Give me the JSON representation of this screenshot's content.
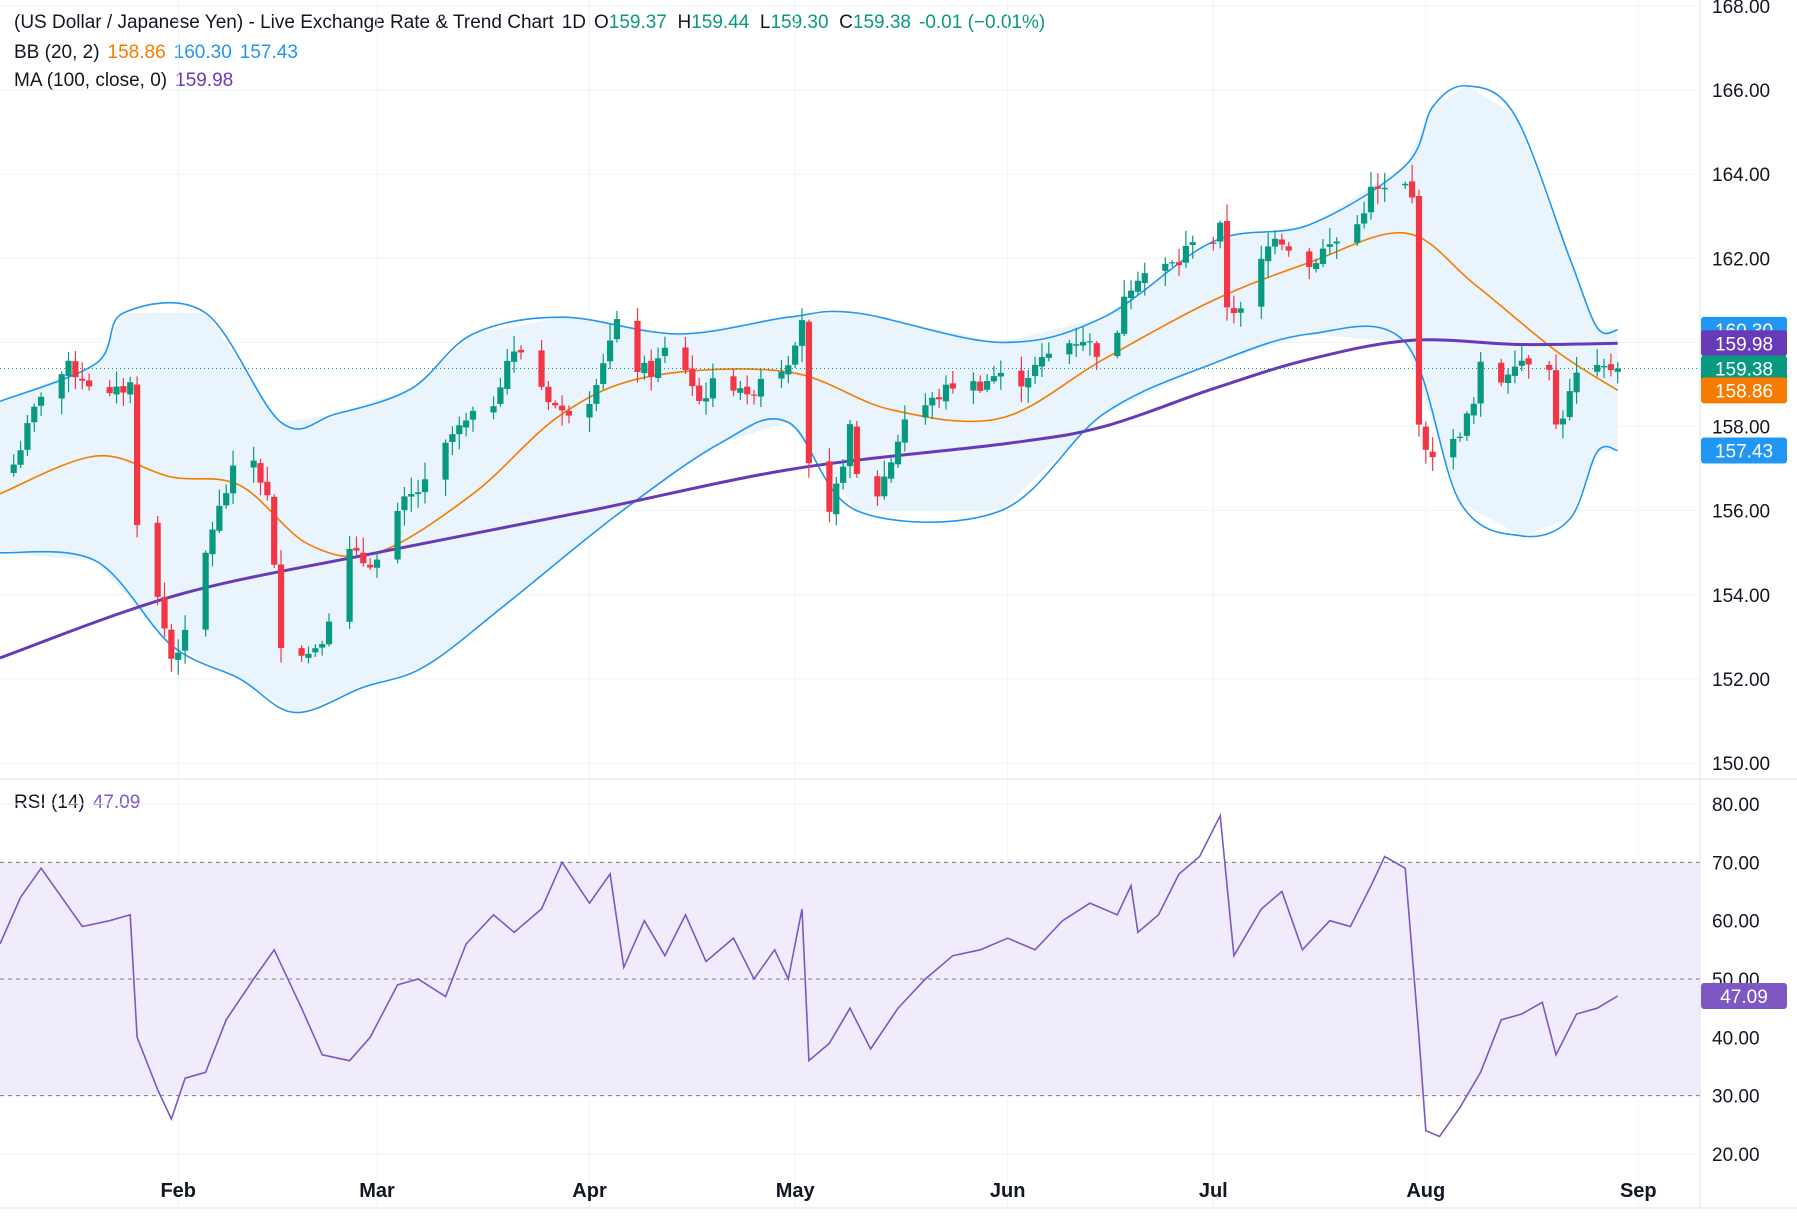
{
  "header": {
    "title": "(US Dollar / Japanese Yen) - Live Exchange Rate & Trend Chart",
    "interval": "1D",
    "ohlc": [
      {
        "k": "O",
        "v": "159.37"
      },
      {
        "k": "H",
        "v": "159.44"
      },
      {
        "k": "L",
        "v": "159.30"
      },
      {
        "k": "C",
        "v": "159.38"
      }
    ],
    "change": "-0.01 (−0.01%)",
    "bb_label": "BB (20, 2)",
    "bb_values": [
      "158.86",
      "160.30",
      "157.43"
    ],
    "ma_label": "MA (100, close, 0)",
    "ma_value": "159.98",
    "rsi_label": "RSI (14)",
    "rsi_value": "47.09"
  },
  "colors": {
    "up": "#089981",
    "down": "#f23645",
    "bb_basis": "#f57c00",
    "bb_band": "#2196f3",
    "bb_fill": "#eaf4fd",
    "ma": "#673ab7",
    "rsi": "#7e57c2",
    "rsi_fill": "#f1ecfb",
    "grid": "#f0f3fa",
    "axis_text": "#131722"
  },
  "chart_data": [
    {
      "type": "candlestick",
      "ylim": [
        150,
        168
      ],
      "y_ticks": [
        "150.00",
        "152.00",
        "154.00",
        "156.00",
        "158.00",
        "160.00",
        "162.00",
        "164.00",
        "166.00",
        "168.00"
      ],
      "x_ticks": [
        "Feb",
        "Mar",
        "Apr",
        "May",
        "Jun",
        "Jul",
        "Aug",
        "Sep"
      ],
      "x_tick_dates": [
        "2024-02-01",
        "2024-03-01",
        "2024-04-01",
        "2024-05-01",
        "2024-06-01",
        "2024-07-01",
        "2024-08-01",
        "2024-09-01"
      ],
      "x_range": [
        "2024-01-06",
        "2024-09-10"
      ],
      "price_tags": [
        {
          "value": 160.3,
          "label": "160.30",
          "color": "#2196f3"
        },
        {
          "value": 159.98,
          "label": "159.98",
          "color": "#673ab7"
        },
        {
          "value": 159.38,
          "label": "159.38",
          "color": "#089981"
        },
        {
          "value": 158.86,
          "label": "158.86",
          "color": "#f57c00"
        },
        {
          "value": 157.43,
          "label": "157.43",
          "color": "#2196f3"
        }
      ],
      "last_close": 159.38,
      "close_anchors": [
        [
          "2024-01-08",
          157.1
        ],
        [
          "2024-01-12",
          158.8
        ],
        [
          "2024-01-16",
          159.4
        ],
        [
          "2024-01-22",
          158.7
        ],
        [
          "2024-01-25",
          159.0
        ],
        [
          "2024-01-26",
          155.8
        ],
        [
          "2024-01-29",
          153.9
        ],
        [
          "2024-01-31",
          152.5
        ],
        [
          "2024-02-02",
          153.0
        ],
        [
          "2024-02-06",
          155.6
        ],
        [
          "2024-02-09",
          156.9
        ],
        [
          "2024-02-12",
          157.2
        ],
        [
          "2024-02-14",
          156.3
        ],
        [
          "2024-02-16",
          152.9
        ],
        [
          "2024-02-20",
          152.6
        ],
        [
          "2024-02-22",
          153.0
        ],
        [
          "2024-02-26",
          155.0
        ],
        [
          "2024-02-28",
          154.8
        ],
        [
          "2024-03-01",
          154.8
        ],
        [
          "2024-03-05",
          156.2
        ],
        [
          "2024-03-08",
          156.6
        ],
        [
          "2024-03-12",
          157.8
        ],
        [
          "2024-03-15",
          158.2
        ],
        [
          "2024-03-18",
          158.6
        ],
        [
          "2024-03-20",
          159.6
        ],
        [
          "2024-03-22",
          159.8
        ],
        [
          "2024-03-26",
          158.7
        ],
        [
          "2024-03-28",
          158.3
        ],
        [
          "2024-04-01",
          158.7
        ],
        [
          "2024-04-03",
          159.6
        ],
        [
          "2024-04-05",
          160.4
        ],
        [
          "2024-04-08",
          159.4
        ],
        [
          "2024-04-10",
          159.3
        ],
        [
          "2024-04-12",
          159.8
        ],
        [
          "2024-04-15",
          159.4
        ],
        [
          "2024-04-17",
          158.6
        ],
        [
          "2024-04-19",
          159.0
        ],
        [
          "2024-04-23",
          159.0
        ],
        [
          "2024-04-24",
          158.6
        ],
        [
          "2024-04-26",
          159.2
        ],
        [
          "2024-04-29",
          159.4
        ],
        [
          "2024-04-30",
          159.6
        ],
        [
          "2024-05-02",
          160.6
        ],
        [
          "2024-05-03",
          157.0
        ],
        [
          "2024-05-06",
          155.8
        ],
        [
          "2024-05-09",
          157.9
        ],
        [
          "2024-05-10",
          156.8
        ],
        [
          "2024-05-13",
          156.4
        ],
        [
          "2024-05-15",
          157.2
        ],
        [
          "2024-05-17",
          158.2
        ],
        [
          "2024-05-21",
          158.6
        ],
        [
          "2024-05-24",
          159.0
        ],
        [
          "2024-05-28",
          159.0
        ],
        [
          "2024-05-30",
          159.2
        ],
        [
          "2024-06-03",
          159.1
        ],
        [
          "2024-06-05",
          159.4
        ],
        [
          "2024-06-07",
          159.7
        ],
        [
          "2024-06-10",
          160.0
        ],
        [
          "2024-06-12",
          160.1
        ],
        [
          "2024-06-14",
          159.8
        ],
        [
          "2024-06-17",
          160.1
        ],
        [
          "2024-06-18",
          161.2
        ],
        [
          "2024-06-20",
          161.6
        ],
        [
          "2024-06-24",
          161.8
        ],
        [
          "2024-06-26",
          161.9
        ],
        [
          "2024-06-28",
          162.5
        ],
        [
          "2024-07-01",
          162.4
        ],
        [
          "2024-07-02",
          162.7
        ],
        [
          "2024-07-03",
          160.9
        ],
        [
          "2024-07-05",
          160.7
        ],
        [
          "2024-07-08",
          161.9
        ],
        [
          "2024-07-10",
          162.6
        ],
        [
          "2024-07-12",
          162.3
        ],
        [
          "2024-07-15",
          161.8
        ],
        [
          "2024-07-17",
          162.2
        ],
        [
          "2024-07-19",
          162.4
        ],
        [
          "2024-07-22",
          162.8
        ],
        [
          "2024-07-24",
          163.6
        ],
        [
          "2024-07-26",
          163.6
        ],
        [
          "2024-07-29",
          163.7
        ],
        [
          "2024-07-30",
          163.4
        ],
        [
          "2024-07-31",
          158.2
        ],
        [
          "2024-08-01",
          157.3
        ],
        [
          "2024-08-02",
          157.4
        ],
        [
          "2024-08-05",
          157.6
        ],
        [
          "2024-08-06",
          157.9
        ],
        [
          "2024-08-07",
          158.2
        ],
        [
          "2024-08-08",
          158.5
        ],
        [
          "2024-08-09",
          159.4
        ],
        [
          "2024-08-12",
          159.1
        ],
        [
          "2024-08-14",
          159.6
        ],
        [
          "2024-08-16",
          159.6
        ],
        [
          "2024-08-19",
          159.5
        ],
        [
          "2024-08-20",
          158.0
        ],
        [
          "2024-08-21",
          158.3
        ],
        [
          "2024-08-23",
          159.2
        ],
        [
          "2024-08-26",
          159.3
        ],
        [
          "2024-08-28",
          159.4
        ],
        [
          "2024-08-29",
          159.38
        ]
      ],
      "ma_curve": [
        [
          "2024-01-06",
          152.5
        ],
        [
          "2024-02-01",
          154.0
        ],
        [
          "2024-03-01",
          155.0
        ],
        [
          "2024-04-01",
          156.0
        ],
        [
          "2024-05-01",
          157.0
        ],
        [
          "2024-06-01",
          157.6
        ],
        [
          "2024-06-15",
          158.0
        ],
        [
          "2024-07-01",
          158.9
        ],
        [
          "2024-07-15",
          159.6
        ],
        [
          "2024-07-30",
          160.05
        ],
        [
          "2024-08-15",
          159.95
        ],
        [
          "2024-08-29",
          159.98
        ]
      ],
      "bb_basis": [
        [
          "2024-01-06",
          156.4
        ],
        [
          "2024-01-20",
          157.3
        ],
        [
          "2024-01-31",
          156.8
        ],
        [
          "2024-02-10",
          156.6
        ],
        [
          "2024-02-20",
          155.2
        ],
        [
          "2024-03-01",
          155.0
        ],
        [
          "2024-03-15",
          156.4
        ],
        [
          "2024-03-28",
          158.3
        ],
        [
          "2024-04-10",
          159.2
        ],
        [
          "2024-04-30",
          159.3
        ],
        [
          "2024-05-15",
          158.4
        ],
        [
          "2024-05-31",
          158.2
        ],
        [
          "2024-06-15",
          159.6
        ],
        [
          "2024-07-01",
          161.0
        ],
        [
          "2024-07-15",
          161.9
        ],
        [
          "2024-07-29",
          162.6
        ],
        [
          "2024-08-08",
          161.4
        ],
        [
          "2024-08-20",
          159.8
        ],
        [
          "2024-08-29",
          158.86
        ]
      ],
      "bb_upper": [
        [
          "2024-01-06",
          158.6
        ],
        [
          "2024-01-20",
          159.5
        ],
        [
          "2024-01-24",
          160.7
        ],
        [
          "2024-02-05",
          160.7
        ],
        [
          "2024-02-16",
          158.1
        ],
        [
          "2024-02-24",
          158.3
        ],
        [
          "2024-03-06",
          158.9
        ],
        [
          "2024-03-15",
          160.2
        ],
        [
          "2024-03-28",
          160.6
        ],
        [
          "2024-04-14",
          160.2
        ],
        [
          "2024-04-30",
          160.6
        ],
        [
          "2024-05-10",
          160.7
        ],
        [
          "2024-05-31",
          160.0
        ],
        [
          "2024-06-15",
          160.6
        ],
        [
          "2024-07-01",
          162.4
        ],
        [
          "2024-07-15",
          162.8
        ],
        [
          "2024-07-29",
          164.2
        ],
        [
          "2024-08-02",
          165.6
        ],
        [
          "2024-08-07",
          166.1
        ],
        [
          "2024-08-14",
          165.4
        ],
        [
          "2024-08-22",
          162.0
        ],
        [
          "2024-08-26",
          160.35
        ],
        [
          "2024-08-29",
          160.3
        ]
      ],
      "bb_lower": [
        [
          "2024-01-06",
          155.0
        ],
        [
          "2024-01-20",
          154.8
        ],
        [
          "2024-01-31",
          152.8
        ],
        [
          "2024-02-10",
          152.0
        ],
        [
          "2024-02-18",
          151.2
        ],
        [
          "2024-02-28",
          151.8
        ],
        [
          "2024-03-08",
          152.3
        ],
        [
          "2024-03-20",
          153.8
        ],
        [
          "2024-04-05",
          155.9
        ],
        [
          "2024-04-20",
          157.6
        ],
        [
          "2024-04-30",
          158.1
        ],
        [
          "2024-05-10",
          156.0
        ],
        [
          "2024-05-31",
          156.0
        ],
        [
          "2024-06-15",
          158.3
        ],
        [
          "2024-07-01",
          159.5
        ],
        [
          "2024-07-15",
          160.2
        ],
        [
          "2024-07-29",
          160.0
        ],
        [
          "2024-08-06",
          156.2
        ],
        [
          "2024-08-15",
          155.4
        ],
        [
          "2024-08-22",
          155.8
        ],
        [
          "2024-08-26",
          157.4
        ],
        [
          "2024-08-29",
          157.43
        ]
      ]
    },
    {
      "type": "line",
      "title": "RSI (14)",
      "ylim": [
        20,
        80
      ],
      "y_ticks": [
        "20.00",
        "30.00",
        "40.00",
        "50.00",
        "60.00",
        "70.00",
        "80.00"
      ],
      "band": [
        30,
        70
      ],
      "midline": 50,
      "last_value": 47.09,
      "series": [
        [
          "2024-01-06",
          56
        ],
        [
          "2024-01-09",
          64
        ],
        [
          "2024-01-12",
          69
        ],
        [
          "2024-01-15",
          64
        ],
        [
          "2024-01-18",
          59
        ],
        [
          "2024-01-22",
          60
        ],
        [
          "2024-01-25",
          61
        ],
        [
          "2024-01-26",
          40
        ],
        [
          "2024-01-29",
          31
        ],
        [
          "2024-01-31",
          26
        ],
        [
          "2024-02-02",
          33
        ],
        [
          "2024-02-05",
          34
        ],
        [
          "2024-02-08",
          43
        ],
        [
          "2024-02-12",
          50
        ],
        [
          "2024-02-15",
          55
        ],
        [
          "2024-02-19",
          45
        ],
        [
          "2024-02-22",
          37
        ],
        [
          "2024-02-26",
          36
        ],
        [
          "2024-02-29",
          40
        ],
        [
          "2024-03-04",
          49
        ],
        [
          "2024-03-07",
          50
        ],
        [
          "2024-03-11",
          47
        ],
        [
          "2024-03-14",
          56
        ],
        [
          "2024-03-18",
          61
        ],
        [
          "2024-03-21",
          58
        ],
        [
          "2024-03-25",
          62
        ],
        [
          "2024-03-28",
          70
        ],
        [
          "2024-04-01",
          63
        ],
        [
          "2024-04-04",
          68
        ],
        [
          "2024-04-06",
          52
        ],
        [
          "2024-04-09",
          60
        ],
        [
          "2024-04-12",
          54
        ],
        [
          "2024-04-15",
          61
        ],
        [
          "2024-04-18",
          53
        ],
        [
          "2024-04-22",
          57
        ],
        [
          "2024-04-25",
          50
        ],
        [
          "2024-04-28",
          55
        ],
        [
          "2024-04-30",
          50
        ],
        [
          "2024-05-02",
          62
        ],
        [
          "2024-05-03",
          36
        ],
        [
          "2024-05-06",
          39
        ],
        [
          "2024-05-09",
          45
        ],
        [
          "2024-05-12",
          38
        ],
        [
          "2024-05-16",
          45
        ],
        [
          "2024-05-20",
          50
        ],
        [
          "2024-05-24",
          54
        ],
        [
          "2024-05-28",
          55
        ],
        [
          "2024-06-01",
          57
        ],
        [
          "2024-06-05",
          55
        ],
        [
          "2024-06-09",
          60
        ],
        [
          "2024-06-13",
          63
        ],
        [
          "2024-06-17",
          61
        ],
        [
          "2024-06-19",
          66
        ],
        [
          "2024-06-20",
          58
        ],
        [
          "2024-06-23",
          61
        ],
        [
          "2024-06-26",
          68
        ],
        [
          "2024-06-29",
          71
        ],
        [
          "2024-07-02",
          78
        ],
        [
          "2024-07-04",
          54
        ],
        [
          "2024-07-08",
          62
        ],
        [
          "2024-07-11",
          65
        ],
        [
          "2024-07-14",
          55
        ],
        [
          "2024-07-18",
          60
        ],
        [
          "2024-07-21",
          59
        ],
        [
          "2024-07-24",
          66
        ],
        [
          "2024-07-26",
          71
        ],
        [
          "2024-07-29",
          69
        ],
        [
          "2024-07-31",
          40
        ],
        [
          "2024-08-01",
          24
        ],
        [
          "2024-08-03",
          23
        ],
        [
          "2024-08-06",
          28
        ],
        [
          "2024-08-09",
          34
        ],
        [
          "2024-08-12",
          43
        ],
        [
          "2024-08-15",
          44
        ],
        [
          "2024-08-18",
          46
        ],
        [
          "2024-08-20",
          37
        ],
        [
          "2024-08-23",
          44
        ],
        [
          "2024-08-26",
          45
        ],
        [
          "2024-08-29",
          47.09
        ]
      ]
    }
  ]
}
